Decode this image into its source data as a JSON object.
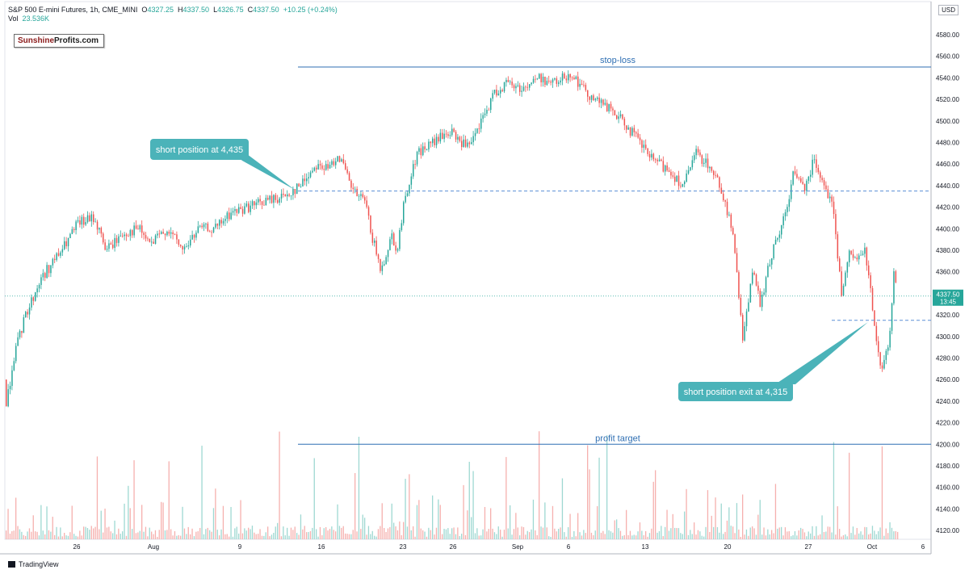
{
  "header": {
    "symbol": "S&P 500 E-mini Futures, 1h, CME_MINI",
    "o_label": "O",
    "o_value": "4327.25",
    "h_label": "H",
    "h_value": "4337.50",
    "l_label": "L",
    "l_value": "4326.75",
    "c_label": "C",
    "c_value": "4337.50",
    "change": "+10.25 (+0.24%)",
    "vol_label": "Vol",
    "vol_value": "23.536K"
  },
  "logo": {
    "part1": "Sunshine",
    "part2": "Profits.com"
  },
  "currency": "USD",
  "footer": {
    "brand": "TradingView"
  },
  "colors": {
    "up": "#26a69a",
    "down": "#ef5350",
    "line": "#2f6fb3",
    "callout": "#4bb3b9"
  },
  "price_badge": {
    "price": "4337.50",
    "time": "13:45"
  },
  "chart_data": {
    "type": "candlestick",
    "ylim": [
      4110,
      4580
    ],
    "yticks": [
      4120,
      4140,
      4160,
      4180,
      4200,
      4220,
      4240,
      4260,
      4280,
      4300,
      4320,
      4340,
      4360,
      4380,
      4400,
      4420,
      4440,
      4460,
      4480,
      4500,
      4520,
      4540,
      4560,
      4580
    ],
    "xticks": [
      "26",
      "Aug",
      "9",
      "16",
      "23",
      "26",
      "Sep",
      "6",
      "13",
      "20",
      "27",
      "Oct",
      "6"
    ],
    "close_path": [
      [
        0,
        4230
      ],
      [
        10,
        4280
      ],
      [
        25,
        4320
      ],
      [
        45,
        4355
      ],
      [
        70,
        4380
      ],
      [
        90,
        4405
      ],
      [
        110,
        4410
      ],
      [
        125,
        4380
      ],
      [
        145,
        4395
      ],
      [
        165,
        4400
      ],
      [
        180,
        4385
      ],
      [
        200,
        4400
      ],
      [
        220,
        4380
      ],
      [
        240,
        4400
      ],
      [
        260,
        4400
      ],
      [
        280,
        4415
      ],
      [
        300,
        4420
      ],
      [
        320,
        4425
      ],
      [
        345,
        4430
      ],
      [
        365,
        4440
      ],
      [
        385,
        4460
      ],
      [
        400,
        4455
      ],
      [
        412,
        4470
      ],
      [
        430,
        4435
      ],
      [
        445,
        4425
      ],
      [
        455,
        4390
      ],
      [
        465,
        4360
      ],
      [
        478,
        4395
      ],
      [
        485,
        4380
      ],
      [
        495,
        4430
      ],
      [
        510,
        4470
      ],
      [
        530,
        4480
      ],
      [
        550,
        4490
      ],
      [
        565,
        4480
      ],
      [
        575,
        4475
      ],
      [
        590,
        4500
      ],
      [
        605,
        4525
      ],
      [
        620,
        4535
      ],
      [
        640,
        4530
      ],
      [
        660,
        4540
      ],
      [
        680,
        4535
      ],
      [
        700,
        4545
      ],
      [
        715,
        4530
      ],
      [
        730,
        4520
      ],
      [
        750,
        4510
      ],
      [
        770,
        4495
      ],
      [
        785,
        4480
      ],
      [
        800,
        4465
      ],
      [
        820,
        4455
      ],
      [
        840,
        4440
      ],
      [
        855,
        4470
      ],
      [
        870,
        4460
      ],
      [
        885,
        4440
      ],
      [
        900,
        4400
      ],
      [
        913,
        4300
      ],
      [
        925,
        4360
      ],
      [
        935,
        4330
      ],
      [
        950,
        4380
      ],
      [
        965,
        4410
      ],
      [
        975,
        4450
      ],
      [
        990,
        4440
      ],
      [
        1002,
        4465
      ],
      [
        1015,
        4440
      ],
      [
        1025,
        4420
      ],
      [
        1035,
        4340
      ],
      [
        1045,
        4375
      ],
      [
        1055,
        4370
      ],
      [
        1065,
        4380
      ],
      [
        1075,
        4320
      ],
      [
        1085,
        4265
      ],
      [
        1095,
        4300
      ],
      [
        1100,
        4360
      ],
      [
        1110,
        4337
      ]
    ],
    "annotations": {
      "stop_loss": {
        "label": "stop-loss",
        "price": 4550
      },
      "profit_target": {
        "label": "profit target",
        "price": 4200
      },
      "entry": {
        "label": "short position at 4,435",
        "price": 4435
      },
      "exit": {
        "label": "short position exit at 4,315",
        "price": 4315
      },
      "last_price": 4337.5
    }
  }
}
